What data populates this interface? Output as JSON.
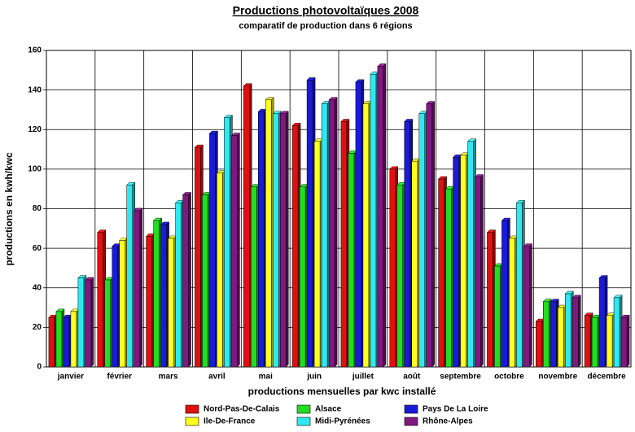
{
  "chart_data": {
    "type": "bar",
    "title": "Productions photovoltaïques 2008",
    "subtitle": "comparatif de production dans 6 régions",
    "y_label": "productions en kwh/kwc",
    "x_label": "productions mensuelles par kwc installé",
    "categories": [
      "janvier",
      "février",
      "mars",
      "avril",
      "mai",
      "juin",
      "juillet",
      "août",
      "septembre",
      "octobre",
      "novembre",
      "décembre"
    ],
    "series": [
      {
        "name": "Nord-Pas-De-Calais",
        "color": "#e01010",
        "values": [
          25,
          68,
          66,
          111,
          142,
          122,
          124,
          100,
          95,
          68,
          23,
          26
        ]
      },
      {
        "name": "Alsace",
        "color": "#22dd22",
        "values": [
          28,
          44,
          74,
          87,
          91,
          91,
          108,
          92,
          90,
          51,
          33,
          25
        ]
      },
      {
        "name": "Pays De La Loire",
        "color": "#1a1ad8",
        "values": [
          25,
          61,
          72,
          118,
          129,
          145,
          144,
          124,
          106,
          74,
          33,
          45
        ]
      },
      {
        "name": "Ile-De-France",
        "color": "#ffff20",
        "values": [
          28,
          64,
          65,
          98,
          135,
          114,
          133,
          104,
          107,
          65,
          30,
          26
        ]
      },
      {
        "name": "Midi-Pyrénées",
        "color": "#30e8f0",
        "values": [
          45,
          92,
          83,
          126,
          128,
          133,
          148,
          128,
          114,
          83,
          37,
          35
        ]
      },
      {
        "name": "Rhône-Alpes",
        "color": "#801880",
        "values": [
          44,
          79,
          87,
          117,
          128,
          135,
          152,
          133,
          96,
          61,
          35,
          25
        ]
      }
    ],
    "ylim": [
      0,
      160
    ],
    "yticks": [
      0,
      20,
      40,
      60,
      80,
      100,
      120,
      140,
      160
    ],
    "grid": true
  }
}
